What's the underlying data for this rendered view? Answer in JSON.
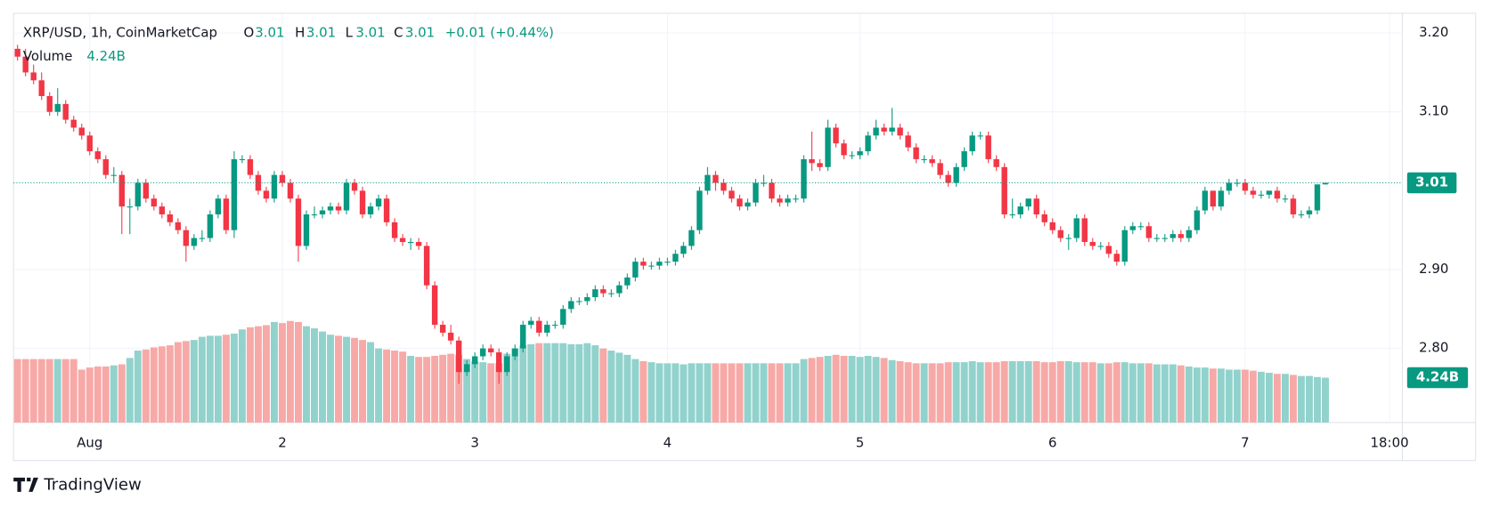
{
  "chart_data": {
    "type": "candlestick",
    "legend": {
      "symbol": "XRP/USD, 1h, CoinMarketCap",
      "open_label": "O",
      "open": 3.01,
      "high_label": "H",
      "high": 3.01,
      "low_label": "L",
      "low": 3.01,
      "close_label": "C",
      "close": 3.01,
      "change": "+0.01 (+0.44%)",
      "volume_label": "Volume",
      "volume": "4.24B"
    },
    "last_price": 3.01,
    "volume_tag": "4.24B",
    "brand": "TradingView",
    "up_color": "#089981",
    "down_color": "#f23645",
    "up_volume_color": "#92d2cc",
    "down_volume_color": "#f7a9a7",
    "ylim": [
      2.706,
      3.225
    ],
    "yticks": [
      {
        "value": 2.8,
        "label": "2.80"
      },
      {
        "value": 2.9,
        "label": "2.90"
      },
      {
        "value": 3.1,
        "label": "3.10"
      },
      {
        "value": 3.2,
        "label": "3.20"
      }
    ],
    "xlim": [
      -0.5,
      172.6
    ],
    "xticks": [
      {
        "value": 9,
        "label": "Aug"
      },
      {
        "value": 33,
        "label": "2"
      },
      {
        "value": 57,
        "label": "3"
      },
      {
        "value": 81,
        "label": "4"
      },
      {
        "value": 105,
        "label": "5"
      },
      {
        "value": 129,
        "label": "6"
      },
      {
        "value": 153,
        "label": "7"
      },
      {
        "value": 171,
        "label": "18:00"
      }
    ],
    "grid": true,
    "open": [
      3.18,
      3.17,
      3.15,
      3.14,
      3.12,
      3.1,
      3.11,
      3.09,
      3.08,
      3.07,
      3.05,
      3.04,
      3.02,
      3.02,
      2.98,
      2.98,
      3.01,
      2.99,
      2.98,
      2.97,
      2.96,
      2.95,
      2.93,
      2.94,
      2.94,
      2.97,
      2.99,
      2.95,
      3.04,
      3.04,
      3.02,
      3.0,
      2.99,
      3.02,
      3.01,
      2.99,
      2.93,
      2.97,
      2.97,
      2.975,
      2.98,
      2.975,
      3.01,
      3.0,
      2.97,
      2.98,
      2.99,
      2.96,
      2.94,
      2.935,
      2.935,
      2.93,
      2.88,
      2.83,
      2.82,
      2.81,
      2.77,
      2.78,
      2.79,
      2.8,
      2.795,
      2.77,
      2.79,
      2.8,
      2.83,
      2.835,
      2.82,
      2.83,
      2.83,
      2.85,
      2.86,
      2.86,
      2.865,
      2.875,
      2.87,
      2.87,
      2.88,
      2.89,
      2.91,
      2.905,
      2.905,
      2.91,
      2.91,
      2.92,
      2.93,
      2.95,
      3.0,
      3.02,
      3.01,
      3.0,
      2.99,
      2.98,
      2.985,
      3.01,
      3.01,
      2.99,
      2.985,
      2.99,
      2.99,
      3.04,
      3.035,
      3.03,
      3.08,
      3.06,
      3.045,
      3.045,
      3.05,
      3.07,
      3.08,
      3.075,
      3.08,
      3.07,
      3.055,
      3.04,
      3.04,
      3.035,
      3.02,
      3.01,
      3.03,
      3.05,
      3.07,
      3.07,
      3.04,
      3.03,
      2.97,
      2.97,
      2.98,
      2.99,
      2.97,
      2.96,
      2.95,
      2.94,
      2.94,
      2.965,
      2.935,
      2.93,
      2.93,
      2.92,
      2.91,
      2.95,
      2.955,
      2.955,
      2.94,
      2.94,
      2.94,
      2.945,
      2.94,
      2.95,
      2.975,
      3.0,
      2.98,
      3.0,
      3.01,
      3.01,
      3.0,
      2.995,
      2.995,
      3.0,
      2.99,
      2.99,
      2.97,
      2.97,
      2.975,
      3.008
    ],
    "high": [
      3.185,
      3.18,
      3.16,
      3.15,
      3.125,
      3.13,
      3.115,
      3.095,
      3.085,
      3.075,
      3.055,
      3.045,
      3.03,
      3.025,
      2.99,
      3.015,
      3.015,
      2.995,
      2.985,
      2.975,
      2.965,
      2.955,
      2.945,
      2.95,
      2.975,
      2.995,
      2.995,
      3.05,
      3.045,
      3.045,
      3.025,
      3.005,
      3.025,
      3.025,
      3.015,
      2.995,
      2.975,
      2.98,
      2.98,
      2.985,
      2.985,
      3.015,
      3.015,
      3.005,
      2.985,
      2.995,
      2.995,
      2.965,
      2.945,
      2.94,
      2.94,
      2.935,
      2.885,
      2.835,
      2.83,
      2.815,
      2.785,
      2.795,
      2.805,
      2.805,
      2.8,
      2.795,
      2.805,
      2.835,
      2.84,
      2.84,
      2.835,
      2.835,
      2.855,
      2.865,
      2.865,
      2.87,
      2.88,
      2.88,
      2.875,
      2.885,
      2.895,
      2.915,
      2.915,
      2.91,
      2.915,
      2.915,
      2.925,
      2.935,
      2.955,
      3.005,
      3.03,
      3.025,
      3.015,
      3.005,
      2.995,
      2.99,
      3.015,
      3.02,
      3.015,
      2.995,
      2.995,
      2.995,
      3.045,
      3.075,
      3.04,
      3.09,
      3.085,
      3.065,
      3.05,
      3.055,
      3.075,
      3.09,
      3.085,
      3.105,
      3.085,
      3.075,
      3.06,
      3.045,
      3.045,
      3.04,
      3.025,
      3.035,
      3.055,
      3.075,
      3.075,
      3.075,
      3.045,
      3.035,
      2.99,
      2.985,
      2.99,
      2.995,
      2.975,
      2.965,
      2.955,
      2.945,
      2.97,
      2.97,
      2.94,
      2.935,
      2.935,
      2.925,
      2.955,
      2.96,
      2.96,
      2.96,
      2.945,
      2.945,
      2.95,
      2.95,
      2.955,
      2.98,
      3.005,
      3.0,
      3.005,
      3.015,
      3.015,
      3.015,
      3.005,
      3.0,
      3.0,
      3.005,
      2.995,
      2.995,
      2.975,
      2.98,
      3.008,
      3.01
    ],
    "low": [
      3.165,
      3.145,
      3.135,
      3.115,
      3.095,
      3.095,
      3.085,
      3.075,
      3.065,
      3.045,
      3.035,
      3.015,
      3.01,
      2.945,
      2.945,
      2.975,
      2.985,
      2.975,
      2.965,
      2.955,
      2.945,
      2.91,
      2.925,
      2.935,
      2.935,
      2.965,
      2.945,
      2.94,
      3.035,
      3.015,
      2.995,
      2.985,
      2.985,
      3.005,
      2.985,
      2.91,
      2.925,
      2.965,
      2.965,
      2.97,
      2.97,
      2.97,
      2.995,
      2.965,
      2.965,
      2.975,
      2.955,
      2.935,
      2.93,
      2.925,
      2.925,
      2.875,
      2.825,
      2.815,
      2.805,
      2.755,
      2.765,
      2.775,
      2.785,
      2.79,
      2.755,
      2.765,
      2.785,
      2.795,
      2.825,
      2.815,
      2.815,
      2.825,
      2.825,
      2.845,
      2.855,
      2.855,
      2.86,
      2.865,
      2.865,
      2.865,
      2.875,
      2.885,
      2.9,
      2.9,
      2.9,
      2.905,
      2.905,
      2.915,
      2.925,
      2.945,
      2.995,
      3.0,
      2.995,
      2.985,
      2.975,
      2.975,
      2.98,
      3.005,
      2.985,
      2.98,
      2.98,
      2.985,
      2.985,
      3.025,
      3.025,
      3.025,
      3.055,
      3.04,
      3.04,
      3.04,
      3.045,
      3.065,
      3.07,
      3.07,
      3.065,
      3.05,
      3.035,
      3.035,
      3.03,
      3.015,
      3.005,
      3.005,
      3.025,
      3.045,
      3.065,
      3.035,
      3.025,
      2.965,
      2.965,
      2.965,
      2.975,
      2.965,
      2.955,
      2.945,
      2.935,
      2.925,
      2.935,
      2.93,
      2.925,
      2.925,
      2.915,
      2.905,
      2.905,
      2.945,
      2.95,
      2.935,
      2.935,
      2.935,
      2.935,
      2.935,
      2.935,
      2.945,
      2.97,
      2.975,
      2.975,
      2.995,
      3.005,
      2.995,
      2.99,
      2.99,
      2.99,
      2.985,
      2.985,
      2.965,
      2.965,
      2.965,
      2.97,
      3.008
    ],
    "close": [
      3.17,
      3.15,
      3.14,
      3.12,
      3.1,
      3.11,
      3.09,
      3.08,
      3.07,
      3.05,
      3.04,
      3.02,
      3.02,
      2.98,
      2.98,
      3.01,
      2.99,
      2.98,
      2.97,
      2.96,
      2.95,
      2.93,
      2.94,
      2.94,
      2.97,
      2.99,
      2.95,
      3.04,
      3.04,
      3.02,
      3.0,
      2.99,
      3.02,
      3.01,
      2.99,
      2.93,
      2.97,
      2.97,
      2.975,
      2.98,
      2.975,
      3.01,
      3.0,
      2.97,
      2.98,
      2.99,
      2.96,
      2.94,
      2.935,
      2.935,
      2.93,
      2.88,
      2.83,
      2.82,
      2.81,
      2.77,
      2.78,
      2.79,
      2.8,
      2.795,
      2.77,
      2.79,
      2.8,
      2.83,
      2.835,
      2.82,
      2.83,
      2.83,
      2.85,
      2.86,
      2.86,
      2.865,
      2.875,
      2.87,
      2.87,
      2.88,
      2.89,
      2.91,
      2.905,
      2.905,
      2.91,
      2.91,
      2.92,
      2.93,
      2.95,
      3.0,
      3.02,
      3.01,
      3.0,
      2.99,
      2.98,
      2.985,
      3.01,
      3.01,
      2.99,
      2.985,
      2.99,
      2.99,
      3.04,
      3.035,
      3.03,
      3.08,
      3.06,
      3.045,
      3.045,
      3.05,
      3.07,
      3.08,
      3.075,
      3.08,
      3.07,
      3.055,
      3.04,
      3.04,
      3.035,
      3.02,
      3.01,
      3.03,
      3.05,
      3.07,
      3.07,
      3.04,
      3.03,
      2.97,
      2.97,
      2.98,
      2.99,
      2.97,
      2.96,
      2.95,
      2.94,
      2.94,
      2.965,
      2.935,
      2.93,
      2.93,
      2.92,
      2.91,
      2.95,
      2.955,
      2.955,
      2.94,
      2.94,
      2.94,
      2.945,
      2.94,
      2.95,
      2.975,
      3.0,
      2.98,
      3.0,
      3.01,
      3.01,
      3.0,
      2.995,
      2.995,
      3.0,
      2.99,
      2.99,
      2.97,
      2.97,
      2.975,
      3.008,
      3.01
    ],
    "volume": [
      6.0,
      6.0,
      6.0,
      6.0,
      6.0,
      6.0,
      6.0,
      6.0,
      5.0,
      5.2,
      5.3,
      5.3,
      5.4,
      5.5,
      6.1,
      6.8,
      6.9,
      7.1,
      7.2,
      7.3,
      7.6,
      7.7,
      7.8,
      8.1,
      8.2,
      8.2,
      8.3,
      8.4,
      8.8,
      9.0,
      9.1,
      9.2,
      9.5,
      9.4,
      9.6,
      9.5,
      9.1,
      8.9,
      8.6,
      8.3,
      8.2,
      8.1,
      8.0,
      7.8,
      7.6,
      7.0,
      6.9,
      6.8,
      6.7,
      6.3,
      6.2,
      6.2,
      6.3,
      6.4,
      6.5,
      6.4,
      6.0,
      5.8,
      5.7,
      5.6,
      5.6,
      6.5,
      7.0,
      7.3,
      7.4,
      7.5,
      7.5,
      7.5,
      7.5,
      7.4,
      7.4,
      7.5,
      7.3,
      7.0,
      6.8,
      6.6,
      6.4,
      6.0,
      5.8,
      5.7,
      5.6,
      5.6,
      5.6,
      5.5,
      5.6,
      5.6,
      5.6,
      5.6,
      5.6,
      5.6,
      5.6,
      5.6,
      5.6,
      5.6,
      5.6,
      5.6,
      5.6,
      5.6,
      6.0,
      6.1,
      6.2,
      6.3,
      6.4,
      6.3,
      6.3,
      6.2,
      6.3,
      6.2,
      6.1,
      5.9,
      5.8,
      5.7,
      5.6,
      5.6,
      5.6,
      5.6,
      5.7,
      5.7,
      5.7,
      5.8,
      5.7,
      5.7,
      5.7,
      5.8,
      5.8,
      5.8,
      5.8,
      5.8,
      5.7,
      5.7,
      5.8,
      5.8,
      5.7,
      5.7,
      5.7,
      5.6,
      5.6,
      5.7,
      5.7,
      5.6,
      5.6,
      5.6,
      5.5,
      5.5,
      5.5,
      5.4,
      5.3,
      5.2,
      5.2,
      5.1,
      5.1,
      5.0,
      5.0,
      5.0,
      4.9,
      4.8,
      4.7,
      4.6,
      4.6,
      4.5,
      4.4,
      4.4,
      4.3,
      4.24
    ]
  }
}
